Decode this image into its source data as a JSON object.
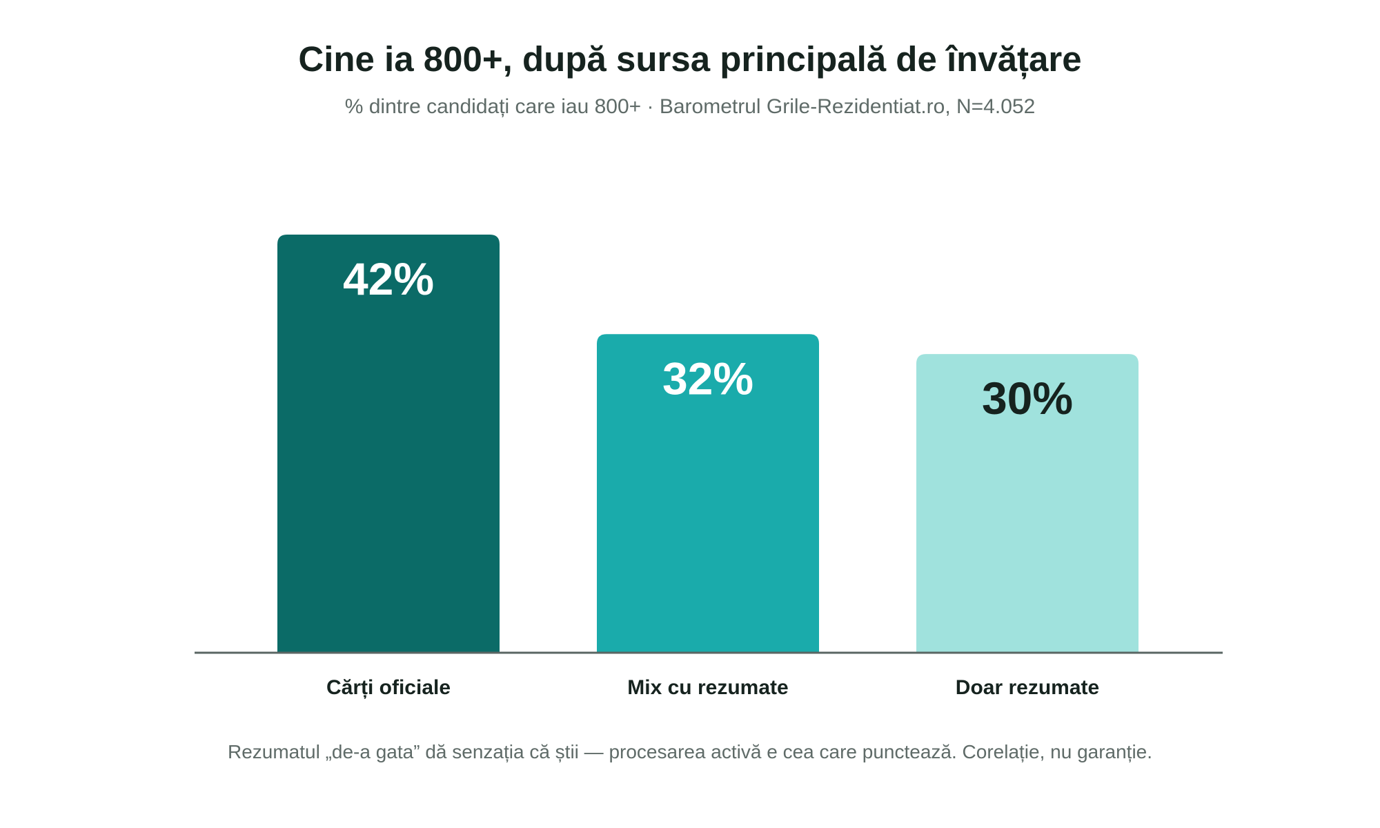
{
  "chart_data": {
    "type": "bar",
    "title": "Cine ia 800+, după sursa principală de învățare",
    "subtitle": "% dintre candidați care iau 800+ · Barometrul Grile-Rezidentiat.ro, N=4.052",
    "categories": [
      "Cărți oficiale",
      "Mix cu rezumate",
      "Doar rezumate"
    ],
    "values": [
      42,
      32,
      30
    ],
    "value_labels": [
      "42%",
      "32%",
      "30%"
    ],
    "bar_colors": [
      "#0b6b67",
      "#1aabab",
      "#a0e2dd"
    ],
    "value_label_colors": [
      "#ffffff",
      "#ffffff",
      "#16231f"
    ],
    "xlabel": "",
    "ylabel": "",
    "ylim": [
      0,
      42
    ],
    "grid": false,
    "footnote": "Rezumatul „de-a gata” dă senzația că știi — procesarea activă e cea care punctează. Corelație, nu garanție."
  }
}
